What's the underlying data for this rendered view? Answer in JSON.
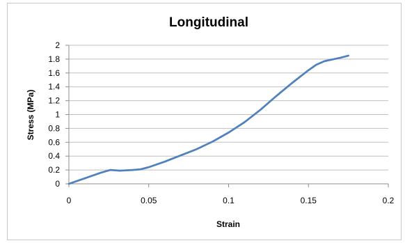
{
  "chart_data": {
    "type": "line",
    "title": "Longitudinal",
    "xlabel": "Strain",
    "ylabel": "Stress (MPa)",
    "xlim": [
      0,
      0.2
    ],
    "ylim": [
      0,
      2
    ],
    "x_ticks": [
      "0",
      "0.05",
      "0.1",
      "0.15",
      "0.2"
    ],
    "y_ticks": [
      "0",
      "0.2",
      "0.4",
      "0.6",
      "0.8",
      "1",
      "1.2",
      "1.4",
      "1.6",
      "1.8",
      "2"
    ],
    "grid": true,
    "legend": "none",
    "series": [
      {
        "color": "#4f81bd",
        "x": [
          0,
          0.01,
          0.02,
          0.026,
          0.032,
          0.04,
          0.045,
          0.05,
          0.06,
          0.07,
          0.08,
          0.09,
          0.1,
          0.11,
          0.12,
          0.13,
          0.14,
          0.15,
          0.155,
          0.16,
          0.17,
          0.175
        ],
        "y": [
          0,
          0.08,
          0.16,
          0.2,
          0.19,
          0.2,
          0.21,
          0.24,
          0.32,
          0.41,
          0.5,
          0.61,
          0.74,
          0.89,
          1.07,
          1.27,
          1.46,
          1.64,
          1.72,
          1.77,
          1.82,
          1.85
        ]
      }
    ]
  }
}
